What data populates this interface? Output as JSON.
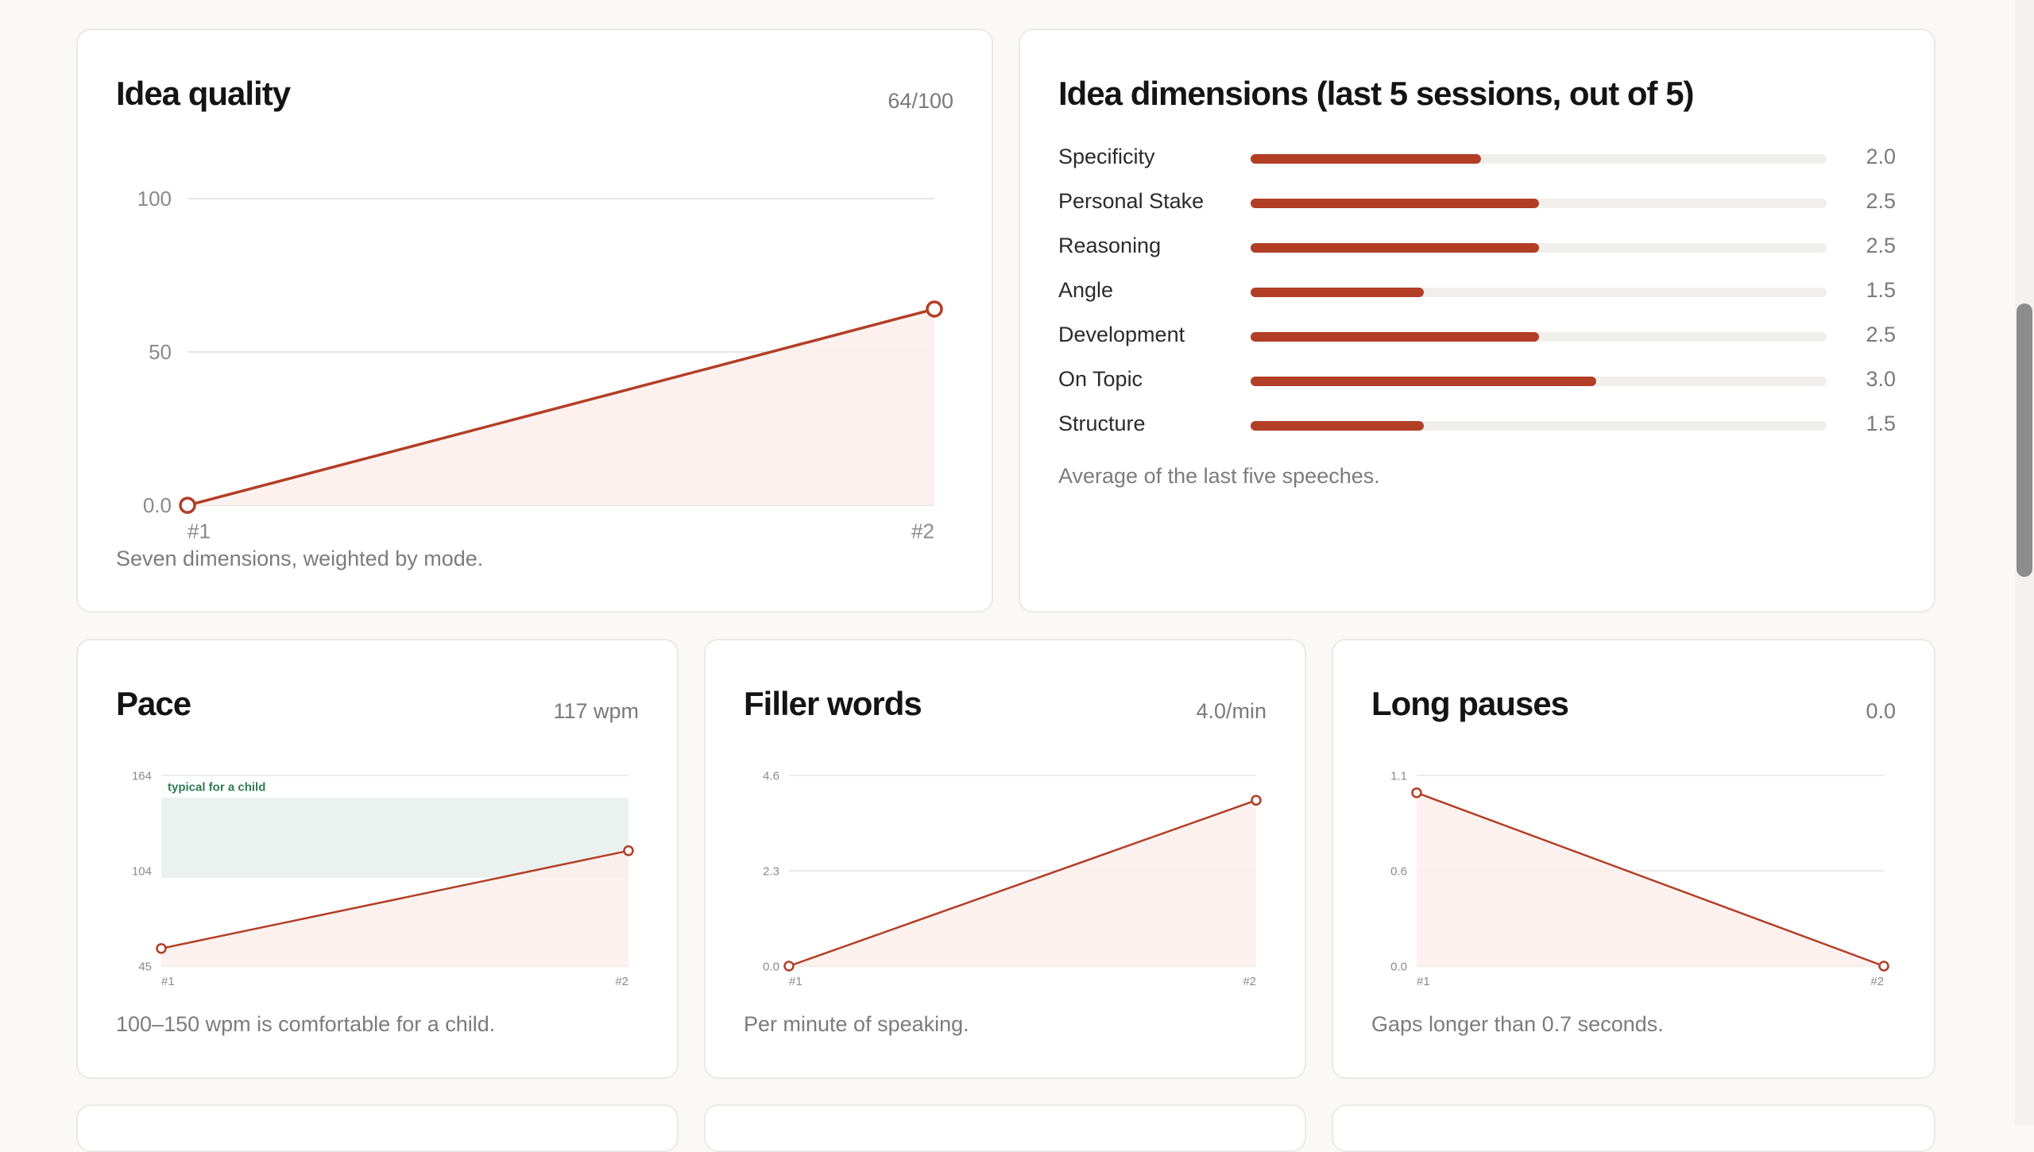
{
  "colors": {
    "accent": "#b23e26",
    "fill": "#fbeeeb",
    "band": "#e9f0ec",
    "band_text": "#2f7a52"
  },
  "idea_quality": {
    "title": "Idea quality",
    "metric": "64/100",
    "note": "Seven dimensions, weighted by mode.",
    "chart_data": {
      "type": "area",
      "categories": [
        "#1",
        "#2"
      ],
      "values": [
        0,
        64
      ],
      "y_ticks": [
        "0.0",
        "50",
        "100"
      ],
      "ylim": [
        0,
        100
      ]
    }
  },
  "idea_dimensions": {
    "title": "Idea dimensions (last 5 sessions, out of 5)",
    "note": "Average of the last five speeches.",
    "max": 5,
    "chart_data": {
      "type": "bar",
      "categories": [
        "Specificity",
        "Personal Stake",
        "Reasoning",
        "Angle",
        "Development",
        "On Topic",
        "Structure"
      ],
      "values": [
        2.0,
        2.5,
        2.5,
        1.5,
        2.5,
        3.0,
        1.5
      ],
      "labels": [
        "2.0",
        "2.5",
        "2.5",
        "1.5",
        "2.5",
        "3.0",
        "1.5"
      ],
      "ylim": [
        0,
        5
      ]
    }
  },
  "pace": {
    "title": "Pace",
    "metric": "117 wpm",
    "note": "100–150 wpm is comfortable for a child.",
    "band_label": "typical for a child",
    "chart_data": {
      "type": "area",
      "categories": [
        "#1",
        "#2"
      ],
      "values": [
        56,
        117
      ],
      "y_ticks": [
        "45",
        "104",
        "164"
      ],
      "ylim": [
        45,
        164
      ],
      "band": [
        100,
        150
      ]
    }
  },
  "filler_words": {
    "title": "Filler words",
    "metric": "4.0/min",
    "note": "Per minute of speaking.",
    "chart_data": {
      "type": "area",
      "categories": [
        "#1",
        "#2"
      ],
      "values": [
        0.0,
        4.0
      ],
      "y_ticks": [
        "0.0",
        "2.3",
        "4.6"
      ],
      "ylim": [
        0,
        4.6
      ]
    }
  },
  "long_pauses": {
    "title": "Long pauses",
    "metric": "0.0",
    "note": "Gaps longer than 0.7 seconds.",
    "chart_data": {
      "type": "area",
      "categories": [
        "#1",
        "#2"
      ],
      "values": [
        1.0,
        0.0
      ],
      "y_ticks": [
        "0.0",
        "0.6",
        "1.1"
      ],
      "ylim": [
        0,
        1.1
      ]
    }
  }
}
